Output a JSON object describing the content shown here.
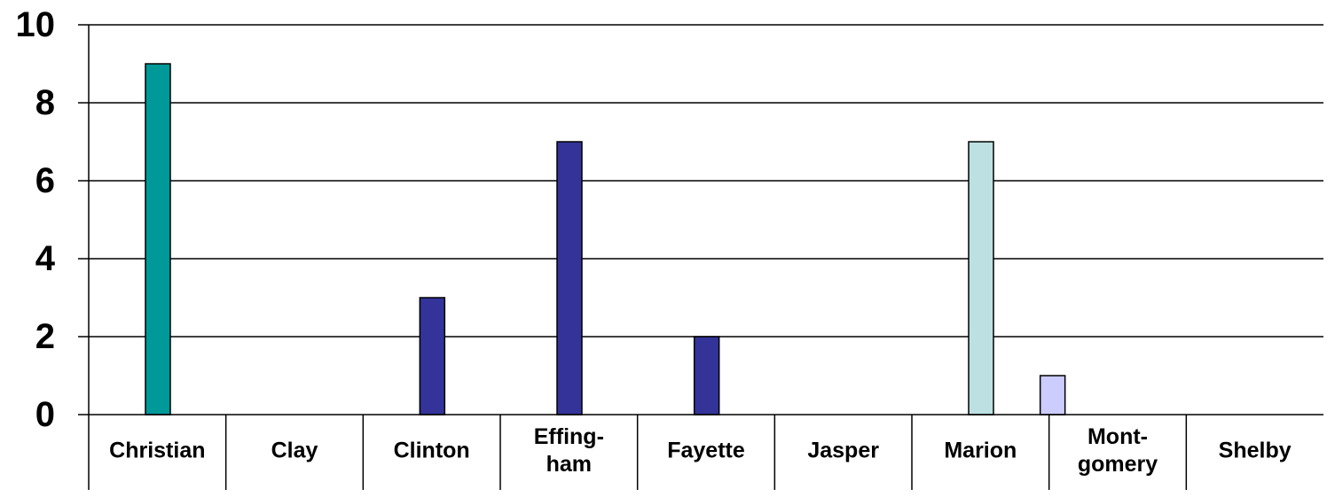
{
  "chart_data": {
    "type": "bar",
    "categories": [
      [
        "Christian"
      ],
      [
        "Clay"
      ],
      [
        "Clinton"
      ],
      [
        "Effing-",
        "ham"
      ],
      [
        "Fayette"
      ],
      [
        "Jasper"
      ],
      [
        "Marion"
      ],
      [
        "Mont-",
        "gomery"
      ],
      [
        "Shelby"
      ]
    ],
    "values": [
      9,
      0,
      3,
      7,
      2,
      0,
      7,
      1,
      0
    ],
    "bar_slot": [
      0,
      0,
      0,
      0,
      0,
      0,
      0,
      1,
      0
    ],
    "bar_colors": [
      "#009999",
      "#333399",
      "#333399",
      "#333399",
      "#333399",
      "#333399",
      "#bde0e2",
      "#ccccff",
      "#333399"
    ],
    "title": "",
    "xlabel": "",
    "ylabel": "",
    "ylim": [
      0,
      10
    ],
    "yticks": [
      "0",
      "2",
      "4",
      "6",
      "8",
      "10"
    ],
    "grid": true
  }
}
